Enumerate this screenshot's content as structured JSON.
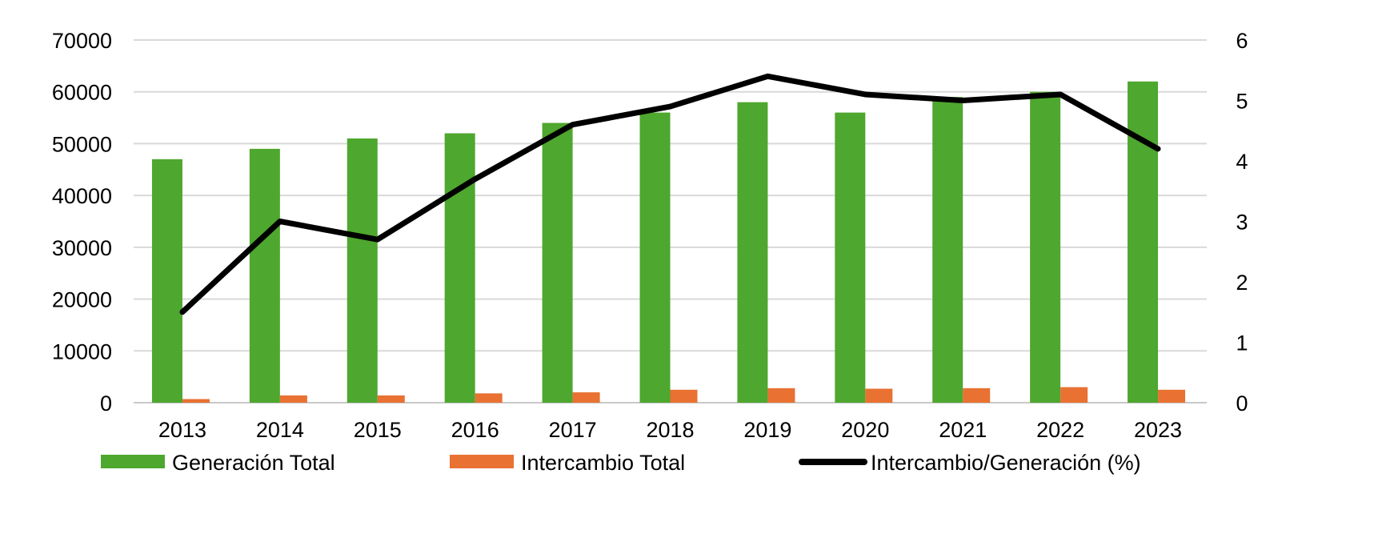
{
  "chart_data": {
    "type": "bar",
    "title": "",
    "xlabel": "",
    "ylabel": "",
    "y2label": "",
    "categories": [
      "2013",
      "2014",
      "2015",
      "2016",
      "2017",
      "2018",
      "2019",
      "2020",
      "2021",
      "2022",
      "2023"
    ],
    "ylim": [
      0,
      70000
    ],
    "yticks": [
      "0",
      "10000",
      "20000",
      "30000",
      "40000",
      "50000",
      "60000",
      "70000"
    ],
    "y2lim": [
      0,
      6
    ],
    "y2ticks": [
      "0",
      "1",
      "2",
      "3",
      "4",
      "5",
      "6"
    ],
    "grid": true,
    "legend_position": "bottom",
    "series": [
      {
        "name": "Generación Total",
        "type": "bar",
        "axis": "left",
        "color": "#4ea72e",
        "values": [
          47000,
          49000,
          51000,
          52000,
          54000,
          56000,
          58000,
          56000,
          59000,
          60000,
          62000
        ]
      },
      {
        "name": "Intercambio Total",
        "type": "bar",
        "axis": "left",
        "color": "#e97132",
        "values": [
          700,
          1400,
          1400,
          1800,
          2000,
          2500,
          2800,
          2700,
          2800,
          3000,
          2500
        ]
      },
      {
        "name": "Intercambio/Generación (%)",
        "type": "line",
        "axis": "right",
        "color": "#000000",
        "values": [
          1.5,
          3.0,
          2.7,
          3.7,
          4.6,
          4.9,
          5.4,
          5.1,
          5.0,
          5.1,
          4.2
        ]
      }
    ]
  }
}
